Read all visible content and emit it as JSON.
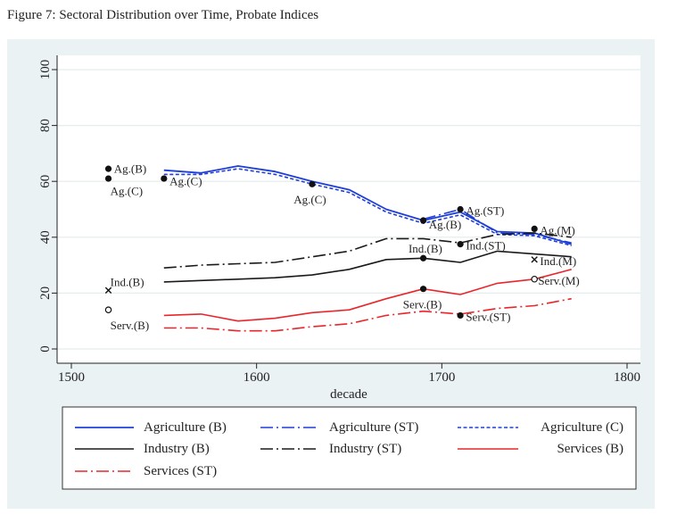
{
  "figure_title": "Figure 7: Sectoral Distribution over Time, Probate Indices",
  "chart_data": {
    "type": "line",
    "title": "Figure 7: Sectoral Distribution over Time, Probate Indices",
    "xlabel": "decade",
    "ylabel": "",
    "xlim": [
      1500,
      1800
    ],
    "ylim": [
      0,
      100
    ],
    "xticks": [
      1500,
      1600,
      1700,
      1800
    ],
    "yticks": [
      0,
      20,
      40,
      60,
      80,
      100
    ],
    "grid": "horizontal",
    "legend_position": "bottom",
    "colors": {
      "blue": "#1f3fd6",
      "black": "#1a1a1a",
      "red": "#e8262c"
    },
    "series": [
      {
        "name": "Agriculture (B)",
        "color": "#1f3fd6",
        "dash": "solid",
        "width": 1.8,
        "points": [
          [
            1550,
            64
          ],
          [
            1570,
            63
          ],
          [
            1590,
            65.5
          ],
          [
            1610,
            63.5
          ],
          [
            1630,
            60
          ],
          [
            1650,
            57
          ],
          [
            1670,
            50
          ],
          [
            1690,
            46
          ],
          [
            1710,
            49
          ],
          [
            1730,
            42
          ],
          [
            1750,
            41.5
          ],
          [
            1770,
            37.5
          ]
        ]
      },
      {
        "name": "Agriculture (ST)",
        "color": "#1f3fd6",
        "dash": "longdashdot",
        "width": 1.6,
        "points": [
          [
            1690,
            46.5
          ],
          [
            1710,
            50
          ],
          [
            1730,
            41.5
          ],
          [
            1750,
            41
          ],
          [
            1770,
            38
          ]
        ]
      },
      {
        "name": "Agriculture (C)",
        "color": "#1f3fd6",
        "dash": "shortdash",
        "width": 1.6,
        "points": [
          [
            1550,
            62.5
          ],
          [
            1570,
            62.5
          ],
          [
            1590,
            64.5
          ],
          [
            1610,
            62.5
          ],
          [
            1630,
            59
          ],
          [
            1650,
            56
          ],
          [
            1670,
            49
          ],
          [
            1690,
            45
          ],
          [
            1710,
            48
          ],
          [
            1730,
            41
          ],
          [
            1750,
            40.5
          ],
          [
            1770,
            37
          ]
        ]
      },
      {
        "name": "Industry (B)",
        "color": "#1a1a1a",
        "dash": "solid",
        "width": 1.6,
        "points": [
          [
            1550,
            24
          ],
          [
            1570,
            24.5
          ],
          [
            1590,
            25
          ],
          [
            1610,
            25.5
          ],
          [
            1630,
            26.5
          ],
          [
            1650,
            28.5
          ],
          [
            1670,
            32
          ],
          [
            1690,
            32.5
          ],
          [
            1710,
            31
          ],
          [
            1730,
            35
          ],
          [
            1750,
            34
          ],
          [
            1770,
            33
          ]
        ]
      },
      {
        "name": "Industry (ST)",
        "color": "#1a1a1a",
        "dash": "longdashdot",
        "width": 1.6,
        "points": [
          [
            1550,
            29
          ],
          [
            1570,
            30
          ],
          [
            1590,
            30.5
          ],
          [
            1610,
            31
          ],
          [
            1630,
            33
          ],
          [
            1650,
            35
          ],
          [
            1670,
            39.5
          ],
          [
            1690,
            39.5
          ],
          [
            1710,
            38
          ],
          [
            1730,
            41
          ],
          [
            1750,
            41.5
          ],
          [
            1770,
            40
          ]
        ]
      },
      {
        "name": "Services (B)",
        "color": "#e8262c",
        "dash": "solid",
        "width": 1.6,
        "points": [
          [
            1550,
            12
          ],
          [
            1570,
            12.5
          ],
          [
            1590,
            10
          ],
          [
            1610,
            11
          ],
          [
            1630,
            13
          ],
          [
            1650,
            14
          ],
          [
            1670,
            18
          ],
          [
            1690,
            21.5
          ],
          [
            1710,
            19.5
          ],
          [
            1730,
            23.5
          ],
          [
            1750,
            25
          ],
          [
            1770,
            28.5
          ]
        ]
      },
      {
        "name": "Services (ST)",
        "color": "#e8262c",
        "dash": "longdashdot",
        "width": 1.6,
        "points": [
          [
            1550,
            7.5
          ],
          [
            1570,
            7.5
          ],
          [
            1590,
            6.5
          ],
          [
            1610,
            6.5
          ],
          [
            1630,
            8
          ],
          [
            1650,
            9
          ],
          [
            1670,
            12
          ],
          [
            1690,
            13.5
          ],
          [
            1710,
            12.5
          ],
          [
            1730,
            14.5
          ],
          [
            1750,
            15.5
          ],
          [
            1770,
            18
          ]
        ]
      }
    ],
    "markers": [
      {
        "x": 1520,
        "y": 64.5,
        "symbol": "dot"
      },
      {
        "x": 1520,
        "y": 61,
        "symbol": "dot"
      },
      {
        "x": 1550,
        "y": 61,
        "symbol": "dot"
      },
      {
        "x": 1630,
        "y": 59,
        "symbol": "dot"
      },
      {
        "x": 1690,
        "y": 46,
        "symbol": "dot"
      },
      {
        "x": 1710,
        "y": 50,
        "symbol": "dot"
      },
      {
        "x": 1750,
        "y": 43,
        "symbol": "dot"
      },
      {
        "x": 1520,
        "y": 21,
        "symbol": "x"
      },
      {
        "x": 1690,
        "y": 32.5,
        "symbol": "dot"
      },
      {
        "x": 1710,
        "y": 37.5,
        "symbol": "dot"
      },
      {
        "x": 1750,
        "y": 32,
        "symbol": "x"
      },
      {
        "x": 1520,
        "y": 14,
        "symbol": "circle"
      },
      {
        "x": 1690,
        "y": 21.5,
        "symbol": "dot"
      },
      {
        "x": 1710,
        "y": 12,
        "symbol": "dot"
      },
      {
        "x": 1750,
        "y": 25,
        "symbol": "circle"
      }
    ],
    "annotations": [
      {
        "text": "Ag.(B)",
        "x": 1523,
        "y": 64.5,
        "anchor": "start"
      },
      {
        "text": "Ag.(C)",
        "x": 1521,
        "y": 56.5,
        "anchor": "start"
      },
      {
        "text": "Ag.(C)",
        "x": 1553,
        "y": 60,
        "anchor": "start"
      },
      {
        "text": "Ag.(C)",
        "x": 1620,
        "y": 53.5,
        "anchor": "start"
      },
      {
        "text": "Ag.(B)",
        "x": 1693,
        "y": 44.5,
        "anchor": "start"
      },
      {
        "text": "Ag.(ST)",
        "x": 1713,
        "y": 49.5,
        "anchor": "start"
      },
      {
        "text": "Ag.(M)",
        "x": 1753,
        "y": 42.5,
        "anchor": "start"
      },
      {
        "text": "Ind.(B)",
        "x": 1521,
        "y": 24,
        "anchor": "start"
      },
      {
        "text": "Ind.(B)",
        "x": 1682,
        "y": 36,
        "anchor": "start"
      },
      {
        "text": "Ind.(ST)",
        "x": 1713,
        "y": 37,
        "anchor": "start"
      },
      {
        "text": "Ind.(M)",
        "x": 1753,
        "y": 31.5,
        "anchor": "start"
      },
      {
        "text": "Serv.(B)",
        "x": 1521,
        "y": 8.5,
        "anchor": "start"
      },
      {
        "text": "Serv.(B)",
        "x": 1679,
        "y": 16,
        "anchor": "start"
      },
      {
        "text": "Serv.(ST)",
        "x": 1713,
        "y": 11.5,
        "anchor": "start"
      },
      {
        "text": "Serv.(M)",
        "x": 1752,
        "y": 24.5,
        "anchor": "start"
      }
    ],
    "legend": [
      {
        "label": "Agriculture (B)",
        "series": 0
      },
      {
        "label": "Agriculture (ST)",
        "series": 1
      },
      {
        "label": "Agriculture (C)",
        "series": 2
      },
      {
        "label": "Industry (B)",
        "series": 3
      },
      {
        "label": "Industry (ST)",
        "series": 4
      },
      {
        "label": "Services (B)",
        "series": 5
      },
      {
        "label": "Services (ST)",
        "series": 6
      }
    ]
  }
}
